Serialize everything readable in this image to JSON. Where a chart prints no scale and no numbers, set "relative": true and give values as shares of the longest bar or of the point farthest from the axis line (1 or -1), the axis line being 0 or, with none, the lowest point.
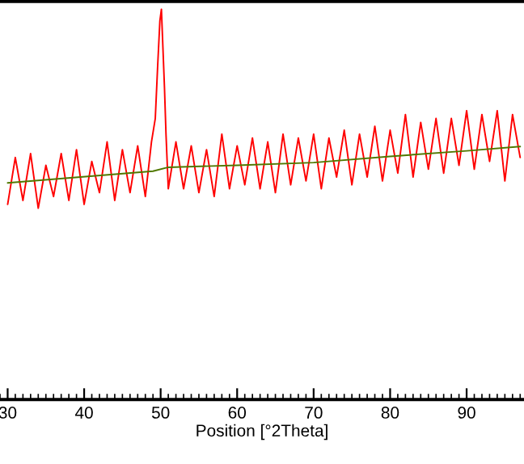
{
  "chart_data": {
    "type": "line",
    "relative": true,
    "xlabel": "Position [°2Theta]",
    "xlim": [
      29,
      97.5
    ],
    "xticks": [
      30,
      40,
      50,
      60,
      70,
      80,
      90
    ],
    "grid": false,
    "marker": "none",
    "line_style": "solid",
    "series": [
      {
        "color": "#ff0000",
        "x": [
          30,
          31,
          32,
          33,
          34,
          35,
          36,
          37,
          38,
          39,
          40,
          41,
          42,
          43,
          44,
          45,
          46,
          47,
          48,
          48.8,
          49.3,
          49.6,
          49.9,
          50.1,
          50.3,
          50.5,
          50.7,
          51,
          52,
          53,
          54,
          55,
          56,
          57,
          58,
          59,
          60,
          61,
          62,
          63,
          64,
          65,
          66,
          67,
          68,
          69,
          70,
          71,
          72,
          73,
          74,
          75,
          76,
          77,
          78,
          79,
          80,
          81,
          82,
          83,
          84,
          85,
          86,
          87,
          88,
          89,
          90,
          91,
          92,
          93,
          94,
          95,
          96,
          97
        ],
        "values": [
          0.5,
          0.62,
          0.51,
          0.63,
          0.49,
          0.6,
          0.52,
          0.63,
          0.51,
          0.64,
          0.5,
          0.61,
          0.53,
          0.66,
          0.51,
          0.64,
          0.53,
          0.65,
          0.52,
          0.66,
          0.72,
          0.85,
          0.97,
          1.0,
          0.9,
          0.8,
          0.68,
          0.54,
          0.66,
          0.54,
          0.65,
          0.53,
          0.64,
          0.52,
          0.68,
          0.54,
          0.65,
          0.55,
          0.67,
          0.54,
          0.66,
          0.53,
          0.68,
          0.55,
          0.67,
          0.56,
          0.68,
          0.54,
          0.67,
          0.57,
          0.69,
          0.55,
          0.68,
          0.57,
          0.7,
          0.56,
          0.69,
          0.58,
          0.73,
          0.57,
          0.71,
          0.59,
          0.72,
          0.58,
          0.72,
          0.6,
          0.74,
          0.59,
          0.73,
          0.61,
          0.74,
          0.56,
          0.73,
          0.62
        ]
      },
      {
        "color": "#507800",
        "x": [
          30,
          49,
          51,
          60,
          70,
          80,
          90,
          97
        ],
        "values": [
          0.555,
          0.585,
          0.595,
          0.6,
          0.607,
          0.623,
          0.637,
          0.648
        ]
      }
    ]
  }
}
